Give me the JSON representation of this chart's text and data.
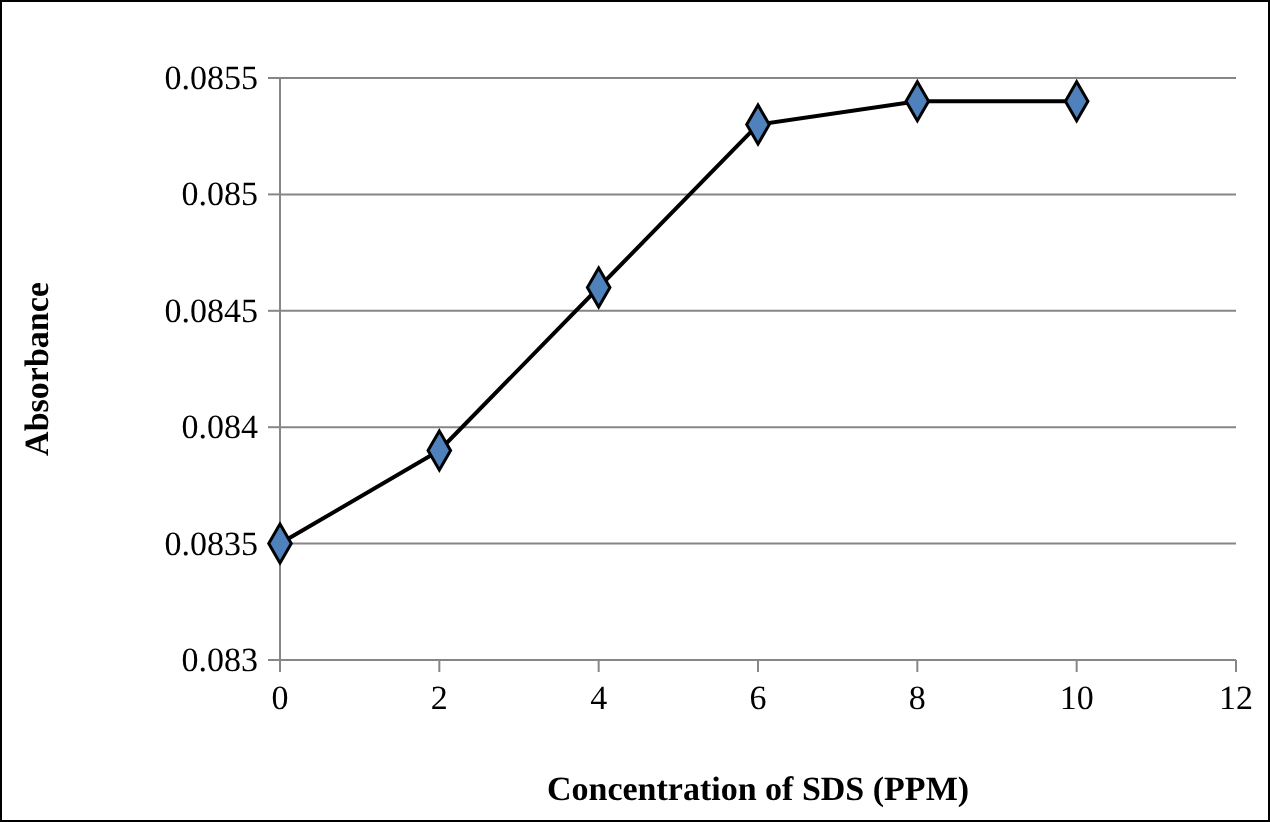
{
  "chart_data": {
    "type": "line",
    "xlabel": "Concentration of SDS (PPM)",
    "ylabel": "Absorbance",
    "x": [
      0,
      2,
      4,
      6,
      8,
      10
    ],
    "series": [
      {
        "color": "#4f81bd",
        "values": [
          0.0835,
          0.0839,
          0.0846,
          0.0853,
          0.0854,
          0.0854
        ]
      }
    ],
    "xlim": [
      0,
      12
    ],
    "xticks": [
      0,
      2,
      4,
      6,
      8,
      10,
      12
    ],
    "ylim": [
      0.083,
      0.0855
    ],
    "yticks": [
      0.083,
      0.0835,
      0.084,
      0.0845,
      0.085,
      0.0855
    ],
    "grid": "y",
    "marker": "diamond",
    "line_style": "solid"
  }
}
